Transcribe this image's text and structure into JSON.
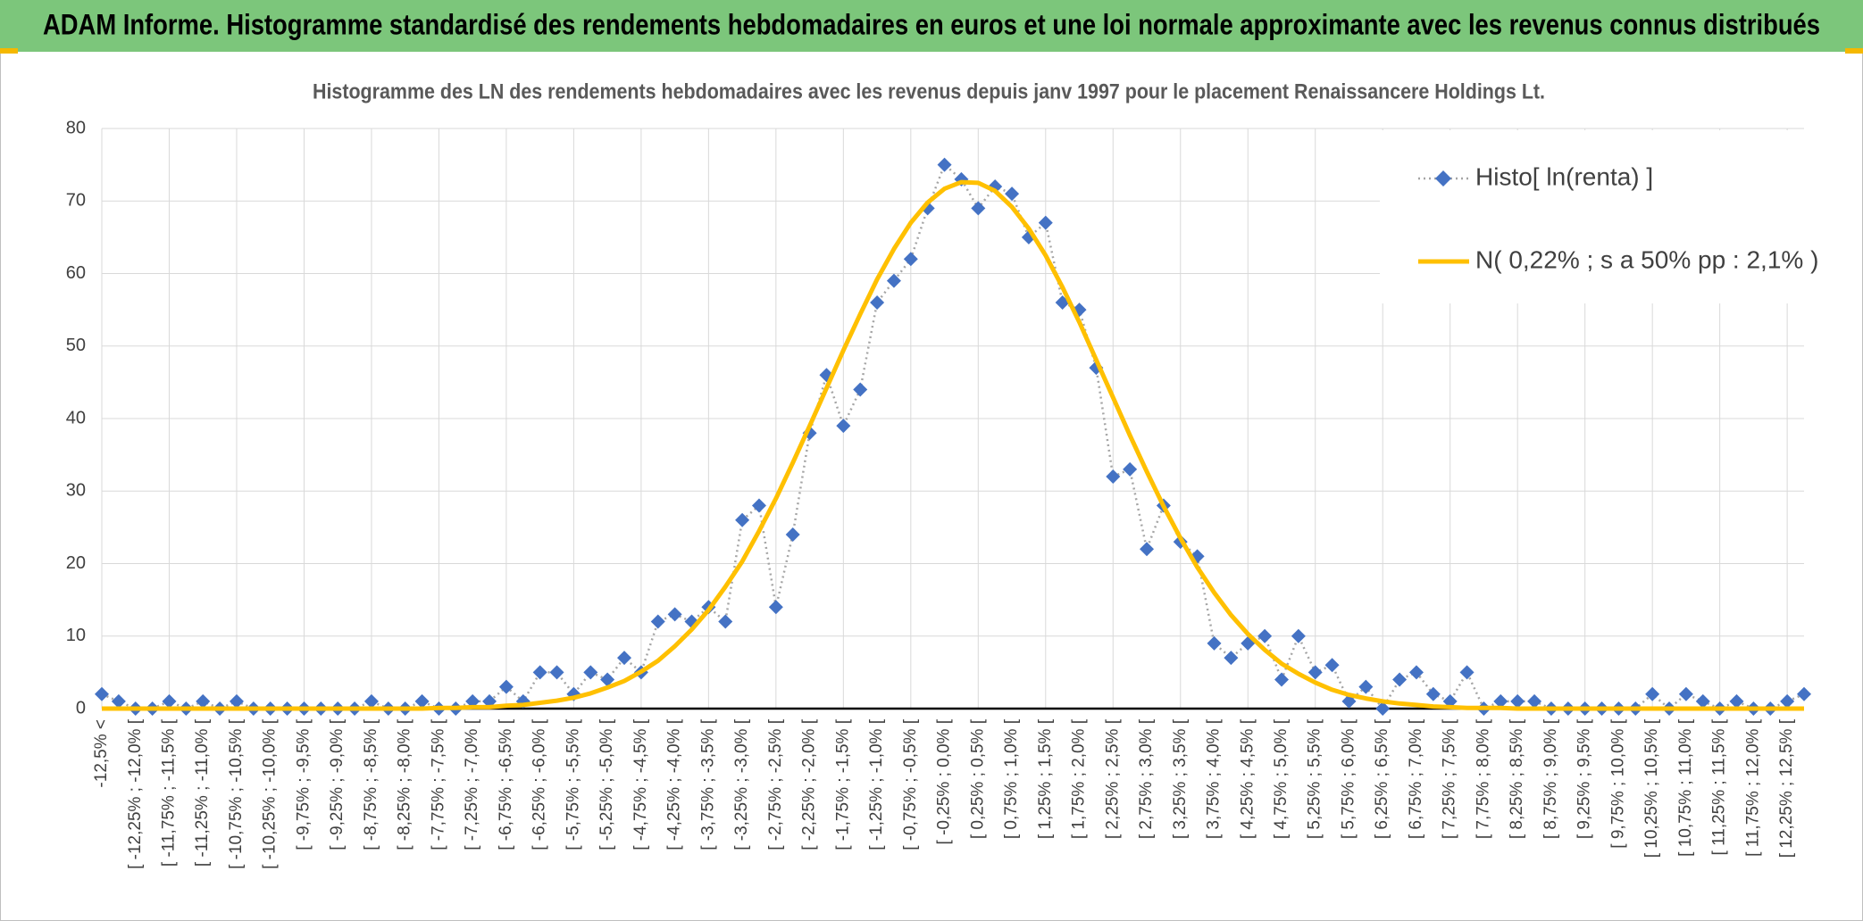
{
  "chart_data": {
    "type": "line",
    "title": "ADAM Informe. Histogramme standardisé des rendements hebdomadaires en euros et une loi normale approximante avec les revenus connus distribués",
    "subtitle": "Histogramme des LN des rendements hebdomadaires avec les revenus depuis janv 1997 pour le placement Renaissancere Holdings Lt.",
    "categories": [
      "-12,5% <",
      null,
      "[ -12,25% ; -12,0% [",
      null,
      "[ -11,75% ; -11,5% [",
      null,
      "[ -11,25% ; -11,0% [",
      null,
      "[ -10,75% ; -10,5% [",
      null,
      "[ -10,25% ; -10,0% [",
      null,
      "[ -9,75% ; -9,5% [",
      null,
      "[ -9,25% ; -9,0% [",
      null,
      "[ -8,75% ; -8,5% [",
      null,
      "[ -8,25% ; -8,0% [",
      null,
      "[ -7,75% ; -7,5% [",
      null,
      "[ -7,25% ; -7,0% [",
      null,
      "[ -6,75% ; -6,5% [",
      null,
      "[ -6,25% ; -6,0% [",
      null,
      "[ -5,75% ; -5,5% [",
      null,
      "[ -5,25% ; -5,0% [",
      null,
      "[ -4,75% ; -4,5% [",
      null,
      "[ -4,25% ; -4,0% [",
      null,
      "[ -3,75% ; -3,5% [",
      null,
      "[ -3,25% ; -3,0% [",
      null,
      "[ -2,75% ; -2,5% [",
      null,
      "[ -2,25% ; -2,0% [",
      null,
      "[ -1,75% ; -1,5% [",
      null,
      "[ -1,25% ; -1,0% [",
      null,
      "[ -0,75% ; -0,5% [",
      null,
      "[ -0,25% ; 0,0% [",
      null,
      "[ 0,25% ; 0,5% [",
      null,
      "[ 0,75% ; 1,0% [",
      null,
      "[ 1,25% ; 1,5% [",
      null,
      "[ 1,75% ; 2,0% [",
      null,
      "[ 2,25% ; 2,5% [",
      null,
      "[ 2,75% ; 3,0% [",
      null,
      "[ 3,25% ; 3,5% [",
      null,
      "[ 3,75% ; 4,0% [",
      null,
      "[ 4,25% ; 4,5% [",
      null,
      "[ 4,75% ; 5,0% [",
      null,
      "[ 5,25% ; 5,5% [",
      null,
      "[ 5,75% ; 6,0% [",
      null,
      "[ 6,25% ; 6,5% [",
      null,
      "[ 6,75% ; 7,0% [",
      null,
      "[ 7,25% ; 7,5% [",
      null,
      "[ 7,75% ; 8,0% [",
      null,
      "[ 8,25% ; 8,5% [",
      null,
      "[ 8,75% ; 9,0% [",
      null,
      "[ 9,25% ; 9,5% [",
      null,
      "[ 9,75% ; 10,0% [",
      null,
      "[ 10,25% ; 10,5% [",
      null,
      "[ 10,75% ; 11,0% [",
      null,
      "[ 11,25% ; 11,5% [",
      null,
      "[ 11,75% ; 12,0% [",
      null,
      "[ 12,25% ; 12,5% [",
      null
    ],
    "series": [
      {
        "name": "Histo[ ln(renta) ]",
        "color": "#4472c4",
        "markers": true,
        "values": [
          2,
          1,
          0,
          0,
          1,
          0,
          1,
          0,
          1,
          0,
          0,
          0,
          0,
          0,
          0,
          0,
          1,
          0,
          0,
          1,
          0,
          0,
          1,
          1,
          3,
          1,
          5,
          5,
          2,
          5,
          4,
          7,
          5,
          12,
          13,
          12,
          14,
          12,
          26,
          28,
          14,
          24,
          38,
          46,
          39,
          44,
          56,
          59,
          62,
          69,
          75,
          73,
          69,
          72,
          71,
          65,
          67,
          56,
          55,
          47,
          32,
          33,
          22,
          28,
          23,
          21,
          9,
          7,
          9,
          10,
          4,
          10,
          5,
          6,
          1,
          3,
          0,
          4,
          5,
          2,
          1,
          5,
          0,
          1,
          1,
          1,
          0,
          0,
          0,
          0,
          0,
          0,
          2,
          0,
          2,
          1,
          0,
          1,
          0,
          0,
          1,
          2
        ]
      },
      {
        "name": "N( 0,22% ; s a 50% pp : 2,1% )",
        "color": "#ffc000",
        "markers": false,
        "values": [
          0,
          0,
          0,
          0,
          0,
          0,
          0,
          0,
          0,
          0,
          0,
          0,
          0,
          0,
          0,
          0,
          0,
          0,
          0,
          0,
          0.1,
          0.1,
          0.2,
          0.2,
          0.4,
          0.5,
          0.8,
          1.1,
          1.5,
          2.1,
          2.9,
          3.8,
          5.1,
          6.6,
          8.6,
          10.9,
          13.6,
          16.8,
          20.3,
          24.5,
          29.0,
          33.9,
          39.0,
          44.2,
          49.4,
          54.4,
          59.2,
          63.4,
          67.0,
          69.8,
          71.7,
          72.6,
          72.5,
          71.4,
          69.2,
          66.2,
          62.5,
          58.1,
          53.3,
          48.1,
          42.9,
          37.7,
          32.7,
          27.9,
          23.5,
          19.5,
          16.0,
          12.9,
          10.3,
          8.1,
          6.2,
          4.8,
          3.6,
          2.6,
          1.9,
          1.4,
          1.0,
          0.7,
          0.5,
          0.3,
          0.2,
          0.1,
          0.1,
          0.1,
          0,
          0,
          0,
          0,
          0,
          0,
          0,
          0,
          0,
          0,
          0,
          0,
          0,
          0,
          0,
          0,
          0,
          0
        ]
      }
    ],
    "ylim": [
      0,
      80
    ],
    "yticks": [
      0,
      10,
      20,
      30,
      40,
      50,
      60,
      70,
      80
    ],
    "grid": true,
    "legend": "top-right"
  }
}
